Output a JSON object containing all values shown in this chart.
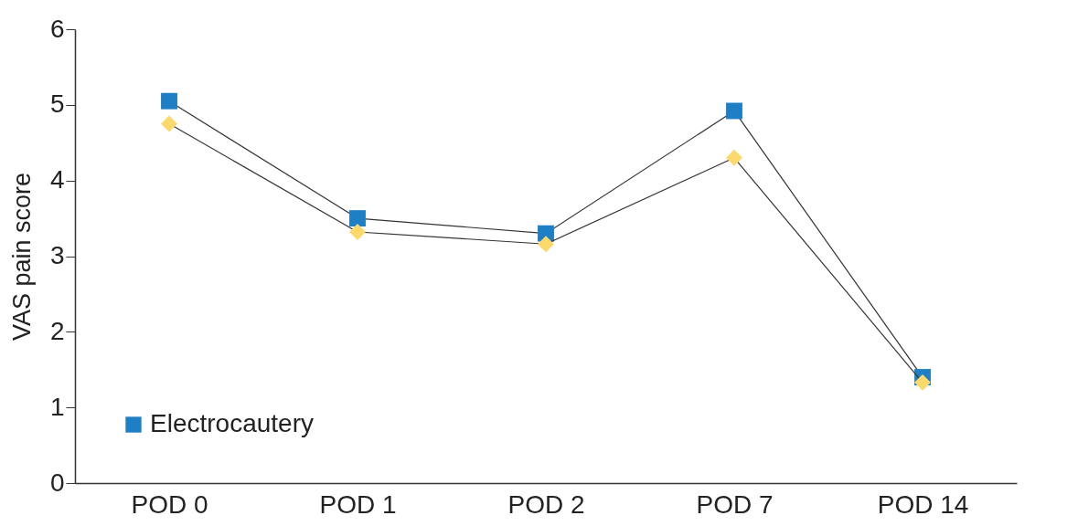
{
  "chart_data": {
    "type": "line",
    "ylabel": "VAS pain score",
    "categories": [
      "POD 0",
      "POD 1",
      "POD 2",
      "POD 7",
      "POD 14"
    ],
    "series": [
      {
        "name": "Electrocautery",
        "color": "#1f7fc4",
        "marker": "square",
        "values": [
          5.05,
          3.5,
          3.3,
          4.92,
          1.4
        ]
      },
      {
        "color": "#fcd96a",
        "marker": "diamond",
        "values": [
          4.75,
          3.32,
          3.16,
          4.3,
          1.33
        ]
      }
    ],
    "ylim": [
      0,
      6
    ],
    "yticks": [
      0,
      1,
      2,
      3,
      4,
      5,
      6
    ],
    "grid": false,
    "legend": "bottom left",
    "line_style": "solid"
  }
}
